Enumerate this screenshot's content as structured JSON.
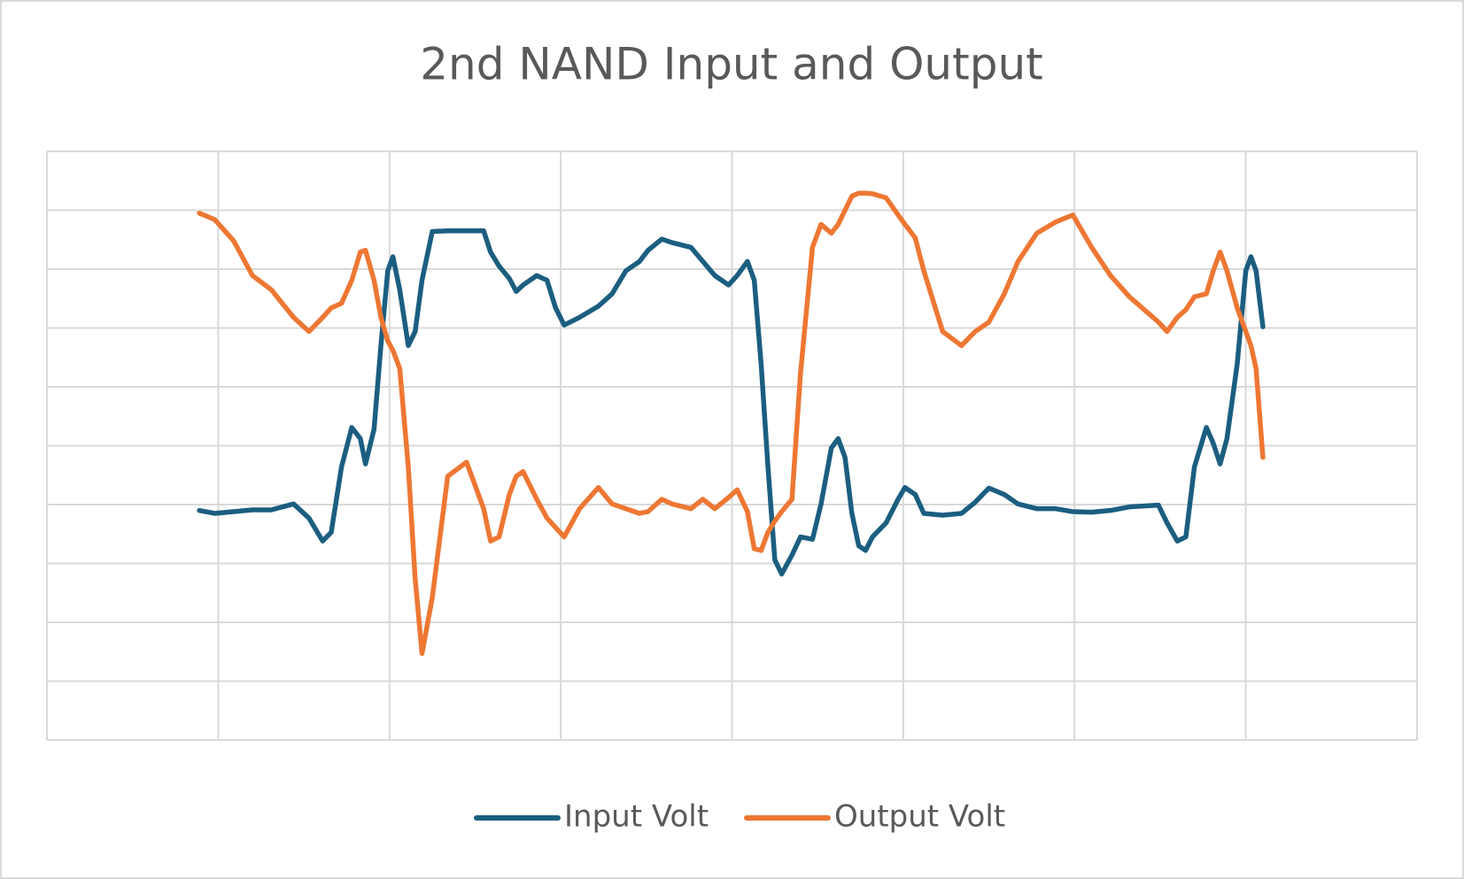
{
  "chart_data": {
    "type": "line",
    "title": "2nd NAND Input and Output",
    "x": [
      0.89,
      0.98,
      1.09,
      1.2,
      1.31,
      1.44,
      1.53,
      1.61,
      1.66,
      1.72,
      1.78,
      1.83,
      1.86,
      1.91,
      1.95,
      1.99,
      2.02,
      2.06,
      2.11,
      2.15,
      2.19,
      2.25,
      2.34,
      2.45,
      2.55,
      2.59,
      2.64,
      2.7,
      2.74,
      2.78,
      2.86,
      2.92,
      2.97,
      3.02,
      3.11,
      3.22,
      3.3,
      3.38,
      3.46,
      3.51,
      3.59,
      3.65,
      3.76,
      3.83,
      3.9,
      3.98,
      4.03,
      4.09,
      4.13,
      4.17,
      4.21,
      4.25,
      4.29,
      4.35,
      4.4,
      4.47,
      4.52,
      4.58,
      4.62,
      4.66,
      4.7,
      4.74,
      4.78,
      4.82,
      4.9,
      4.97,
      5.01,
      5.07,
      5.12,
      5.23,
      5.34,
      5.42,
      5.5,
      5.59,
      5.67,
      5.78,
      5.89,
      5.99,
      6.1,
      6.21,
      6.32,
      6.49,
      6.54,
      6.6,
      6.65,
      6.7,
      6.77,
      6.81,
      6.85,
      6.89,
      6.95,
      7.0,
      7.03,
      7.06,
      7.1
    ],
    "series": [
      {
        "name": "Input Volt",
        "color": "#1b5e80",
        "values": [
          3.9,
          3.85,
          3.88,
          3.91,
          3.91,
          4.01,
          3.77,
          3.38,
          3.53,
          4.64,
          5.31,
          5.12,
          4.69,
          5.28,
          6.7,
          7.97,
          8.21,
          7.65,
          6.7,
          6.94,
          7.81,
          8.64,
          8.65,
          8.65,
          8.65,
          8.29,
          8.05,
          7.84,
          7.62,
          7.73,
          7.89,
          7.81,
          7.34,
          7.05,
          7.18,
          7.37,
          7.58,
          7.97,
          8.13,
          8.32,
          8.51,
          8.45,
          8.37,
          8.13,
          7.89,
          7.73,
          7.89,
          8.13,
          7.81,
          6.39,
          4.64,
          3.06,
          2.82,
          3.14,
          3.45,
          3.41,
          4.01,
          4.96,
          5.12,
          4.8,
          3.85,
          3.3,
          3.22,
          3.45,
          3.69,
          4.09,
          4.29,
          4.17,
          3.85,
          3.82,
          3.85,
          4.04,
          4.28,
          4.17,
          4.01,
          3.93,
          3.93,
          3.88,
          3.87,
          3.9,
          3.96,
          3.99,
          3.69,
          3.38,
          3.45,
          4.64,
          5.31,
          5.04,
          4.69,
          5.12,
          6.39,
          7.97,
          8.21,
          7.97,
          7.02
        ]
      },
      {
        "name": "Output Volt",
        "color": "#ee7733",
        "values": [
          8.95,
          8.84,
          8.48,
          7.89,
          7.65,
          7.18,
          6.94,
          7.18,
          7.34,
          7.42,
          7.81,
          8.29,
          8.32,
          7.81,
          7.18,
          6.78,
          6.62,
          6.31,
          4.64,
          2.74,
          1.47,
          2.42,
          4.48,
          4.72,
          3.93,
          3.38,
          3.45,
          4.17,
          4.48,
          4.56,
          4.09,
          3.77,
          3.61,
          3.45,
          3.93,
          4.29,
          4.01,
          3.93,
          3.85,
          3.88,
          4.09,
          4.01,
          3.93,
          4.09,
          3.93,
          4.12,
          4.25,
          3.88,
          3.25,
          3.22,
          3.53,
          3.72,
          3.88,
          4.09,
          6.23,
          8.37,
          8.76,
          8.61,
          8.76,
          9.0,
          9.24,
          9.29,
          9.29,
          9.28,
          9.21,
          8.92,
          8.76,
          8.53,
          7.97,
          6.94,
          6.7,
          6.94,
          7.1,
          7.58,
          8.13,
          8.61,
          8.8,
          8.92,
          8.37,
          7.89,
          7.53,
          7.1,
          6.94,
          7.18,
          7.31,
          7.53,
          7.58,
          7.97,
          8.29,
          7.97,
          7.34,
          6.94,
          6.7,
          6.31,
          4.8
        ]
      }
    ],
    "xlim": [
      0,
      8
    ],
    "xticks": [
      0,
      1,
      2,
      3,
      4,
      5,
      6,
      7,
      8
    ],
    "ylim": [
      0,
      10
    ],
    "yticks": [
      0,
      1,
      2,
      3,
      4,
      5,
      6,
      7,
      8,
      9,
      10
    ],
    "grid": true,
    "legend": "bottom"
  }
}
